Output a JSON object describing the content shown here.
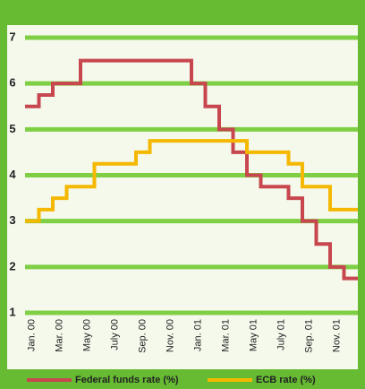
{
  "chart_data": {
    "type": "step",
    "categories": [
      "Jan. 00",
      null,
      "Mar. 00",
      null,
      "May 00",
      null,
      "July 00",
      null,
      "Sep. 00",
      null,
      "Nov. 00",
      null,
      "Jan. 01",
      null,
      "Mar. 01",
      null,
      "May 01",
      null,
      "July 01",
      null,
      "Sep. 01",
      null,
      "Nov. 01",
      null
    ],
    "series": [
      {
        "name": "Federal funds rate (%)",
        "color": "#c8474f",
        "values": [
          5.5,
          5.75,
          6.0,
          6.0,
          6.5,
          6.5,
          6.5,
          6.5,
          6.5,
          6.5,
          6.5,
          6.5,
          6.0,
          5.5,
          5.0,
          4.5,
          4.0,
          3.75,
          3.75,
          3.5,
          3.0,
          2.5,
          2.0,
          1.75
        ]
      },
      {
        "name": "ECB rate (%)",
        "color": "#f5b800",
        "values": [
          3.0,
          3.25,
          3.5,
          3.75,
          3.75,
          4.25,
          4.25,
          4.25,
          4.5,
          4.75,
          4.75,
          4.75,
          4.75,
          4.75,
          4.75,
          4.75,
          4.5,
          4.5,
          4.5,
          4.25,
          3.75,
          3.75,
          3.25,
          3.25
        ]
      }
    ],
    "ylim": [
      1,
      7
    ],
    "yticks": [
      1,
      2,
      3,
      4,
      5,
      6,
      7
    ],
    "grid": true
  }
}
